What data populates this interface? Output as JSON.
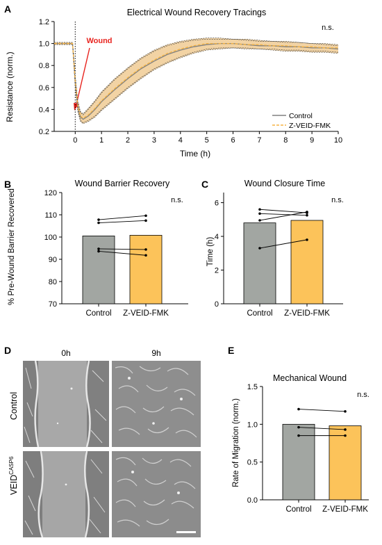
{
  "panels": {
    "A": "A",
    "B": "B",
    "C": "C",
    "D": "D",
    "E": "E"
  },
  "chart_data": [
    {
      "id": "A",
      "type": "line",
      "title": "Electrical Wound Recovery Tracings",
      "xlabel": "Time (h)",
      "ylabel": "Resistance (norm.)",
      "xlim": [
        -0.8,
        10
      ],
      "ylim": [
        0.2,
        1.2
      ],
      "xticks": [
        "0",
        "1",
        "2",
        "3",
        "4",
        "5",
        "6",
        "7",
        "8",
        "9",
        "10"
      ],
      "yticks": [
        "0.2",
        "0.4",
        "0.6",
        "0.8",
        "1.0",
        "1.2"
      ],
      "annotation": "Wound",
      "significance": "n.s.",
      "legend_position": "bottom-right",
      "x": [
        -0.8,
        -0.1,
        0,
        0.1,
        0.2,
        0.3,
        0.5,
        0.75,
        1,
        1.5,
        2,
        2.5,
        3,
        3.5,
        4,
        4.5,
        5,
        5.5,
        6,
        6.5,
        7,
        7.5,
        8,
        8.5,
        9,
        9.5,
        10
      ],
      "series": [
        {
          "name": "Control",
          "color": "#808080",
          "mean": [
            1.0,
            1.0,
            0.65,
            0.42,
            0.33,
            0.31,
            0.34,
            0.4,
            0.47,
            0.58,
            0.68,
            0.77,
            0.84,
            0.9,
            0.94,
            0.97,
            0.99,
            1.0,
            1.0,
            0.99,
            0.98,
            0.98,
            0.97,
            0.97,
            0.96,
            0.96,
            0.95
          ],
          "upper": [
            1.01,
            1.01,
            0.7,
            0.46,
            0.37,
            0.35,
            0.4,
            0.47,
            0.55,
            0.67,
            0.77,
            0.86,
            0.93,
            0.98,
            1.01,
            1.03,
            1.04,
            1.04,
            1.04,
            1.03,
            1.02,
            1.02,
            1.01,
            1.01,
            1.0,
            0.99,
            0.98
          ],
          "lower": [
            0.99,
            0.99,
            0.6,
            0.38,
            0.29,
            0.27,
            0.29,
            0.33,
            0.39,
            0.49,
            0.59,
            0.68,
            0.76,
            0.82,
            0.87,
            0.91,
            0.94,
            0.95,
            0.96,
            0.95,
            0.95,
            0.94,
            0.93,
            0.93,
            0.92,
            0.92,
            0.91
          ]
        },
        {
          "name": "Z-VEID-FMK",
          "color": "#f5b342",
          "mean": [
            1.0,
            1.0,
            0.66,
            0.43,
            0.34,
            0.32,
            0.35,
            0.41,
            0.48,
            0.59,
            0.69,
            0.78,
            0.85,
            0.91,
            0.95,
            0.98,
            1.0,
            1.0,
            1.0,
            0.99,
            0.99,
            0.98,
            0.98,
            0.97,
            0.97,
            0.96,
            0.96
          ],
          "upper": [
            1.01,
            1.01,
            0.71,
            0.47,
            0.38,
            0.36,
            0.41,
            0.48,
            0.56,
            0.68,
            0.78,
            0.87,
            0.94,
            0.99,
            1.02,
            1.04,
            1.05,
            1.05,
            1.04,
            1.04,
            1.03,
            1.02,
            1.02,
            1.01,
            1.0,
            1.0,
            0.99
          ],
          "lower": [
            0.99,
            0.99,
            0.61,
            0.39,
            0.3,
            0.28,
            0.3,
            0.34,
            0.4,
            0.5,
            0.6,
            0.69,
            0.77,
            0.83,
            0.88,
            0.92,
            0.95,
            0.96,
            0.96,
            0.96,
            0.95,
            0.95,
            0.94,
            0.94,
            0.93,
            0.93,
            0.92
          ]
        }
      ]
    },
    {
      "id": "B",
      "type": "bar",
      "title": "Wound Barrier Recovery",
      "ylabel": "% Pre-Wound Barrier Recovered",
      "categories": [
        "Control",
        "Z-VEID-FMK"
      ],
      "values": [
        100.5,
        100.8
      ],
      "colors": [
        "#a2a6a2",
        "#fcc35a"
      ],
      "ylim": [
        70,
        120
      ],
      "yticks": [
        "70",
        "80",
        "90",
        "100",
        "110",
        "120"
      ],
      "paired": [
        [
          107.8,
          109.6
        ],
        [
          106.4,
          107.4
        ],
        [
          94.7,
          94.4
        ],
        [
          93.6,
          91.8
        ]
      ],
      "significance": "n.s."
    },
    {
      "id": "C",
      "type": "bar",
      "title": "Wound Closure Time",
      "ylabel": "Time (h)",
      "categories": [
        "Control",
        "Z-VEID-FMK"
      ],
      "values": [
        4.8,
        4.95
      ],
      "colors": [
        "#a2a6a2",
        "#fcc35a"
      ],
      "ylim": [
        0,
        6.6
      ],
      "yticks": [
        "0",
        "2",
        "4",
        "6"
      ],
      "paired": [
        [
          5.6,
          5.4
        ],
        [
          5.35,
          5.25
        ],
        [
          4.95,
          5.45
        ],
        [
          3.3,
          3.8
        ]
      ],
      "significance": "n.s."
    },
    {
      "id": "E",
      "type": "bar",
      "title": "Mechanical Wound",
      "ylabel": "Rate of Migration (norm.)",
      "categories": [
        "Control",
        "Z-VEID-FMK"
      ],
      "values": [
        1.0,
        0.98
      ],
      "colors": [
        "#a2a6a2",
        "#fcc35a"
      ],
      "ylim": [
        0,
        1.5
      ],
      "yticks": [
        "0.0",
        "0.5",
        "1.0",
        "1.5"
      ],
      "paired": [
        [
          1.2,
          1.17
        ],
        [
          0.96,
          0.93
        ],
        [
          0.85,
          0.85
        ]
      ],
      "significance": "n.s."
    }
  ],
  "micrographs": {
    "col_labels": [
      "0h",
      "9h"
    ],
    "row_label_control": "Control",
    "row_label_veid": "VEID",
    "row_label_veid_sup": "CASP6"
  }
}
